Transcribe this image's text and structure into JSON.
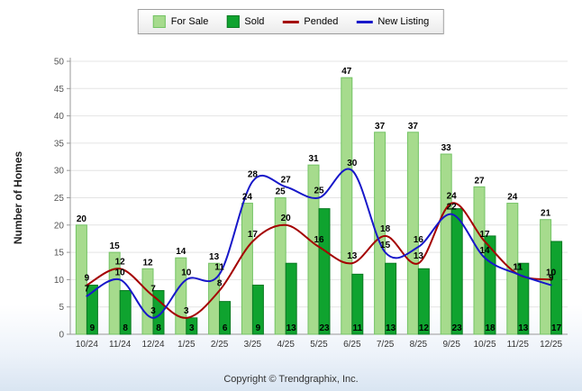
{
  "chart_data": {
    "type": "bar",
    "subtype": "grouped-bars-with-smooth-lines",
    "categories": [
      "10/24",
      "11/24",
      "12/24",
      "1/25",
      "2/25",
      "3/25",
      "4/25",
      "5/25",
      "6/25",
      "7/25",
      "8/25",
      "9/25",
      "10/25",
      "11/25",
      "12/25"
    ],
    "series": [
      {
        "name": "For Sale",
        "type": "bar",
        "color": "#a6db8d",
        "border_color": "#74c365",
        "values": [
          20,
          15,
          12,
          14,
          13,
          24,
          25,
          31,
          47,
          37,
          37,
          33,
          27,
          24,
          21
        ]
      },
      {
        "name": "Sold",
        "type": "bar",
        "color": "#0fa32f",
        "border_color": "#0a7a22",
        "values": [
          9,
          8,
          8,
          3,
          6,
          9,
          13,
          23,
          11,
          13,
          12,
          23,
          18,
          13,
          17
        ]
      },
      {
        "name": "Pended",
        "type": "line",
        "color": "#a40000",
        "values": [
          9,
          12,
          7,
          3,
          8,
          17,
          20,
          16,
          13,
          18,
          13,
          24,
          17,
          11,
          10
        ]
      },
      {
        "name": "New Listing",
        "type": "line",
        "color": "#1717c9",
        "values": [
          7,
          10,
          3,
          10,
          11,
          28,
          27,
          25,
          30,
          15,
          16,
          22,
          14,
          11,
          9
        ]
      }
    ],
    "title": "",
    "xlabel": "",
    "ylabel": "Number of Homes",
    "ylim": [
      0,
      50
    ],
    "ytick_step": 5,
    "grid": true,
    "legend_position": "top-center",
    "label_color": "#000000",
    "axis_color": "#999999",
    "grid_color": "#e4e4e4",
    "tick_label_color": "#555555"
  },
  "footer": {
    "copyright": "Copyright © Trendgraphix, Inc."
  }
}
